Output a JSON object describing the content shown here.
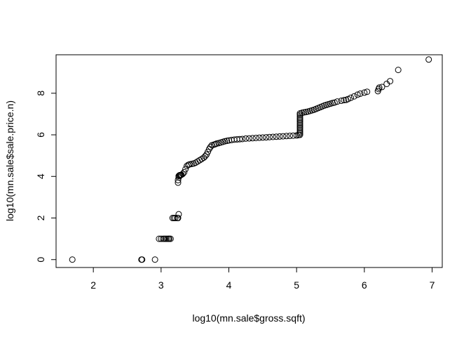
{
  "chart_data": {
    "type": "scatter",
    "title": "",
    "xlabel": "log10(mn.sale$gross.sqft)",
    "ylabel": "log10(mn.sale$sale.price.n)",
    "xlim": [
      1.45,
      7.15
    ],
    "ylim": [
      -0.38,
      9.85
    ],
    "xticks": [
      2,
      3,
      4,
      5,
      6,
      7
    ],
    "yticks": [
      0,
      2,
      4,
      6,
      8
    ],
    "grid": false,
    "legend": "none",
    "marker": "open-circle",
    "points": [
      [
        1.69,
        0.0
      ],
      [
        2.71,
        0.0
      ],
      [
        2.72,
        0.0
      ],
      [
        2.91,
        0.0
      ],
      [
        2.97,
        1.0
      ],
      [
        3.0,
        1.0
      ],
      [
        3.03,
        1.0
      ],
      [
        3.05,
        1.0
      ],
      [
        3.07,
        1.0
      ],
      [
        3.09,
        1.0
      ],
      [
        3.11,
        1.0
      ],
      [
        3.12,
        1.0
      ],
      [
        3.14,
        1.0
      ],
      [
        3.17,
        2.0
      ],
      [
        3.19,
        2.0
      ],
      [
        3.21,
        2.0
      ],
      [
        3.24,
        2.0
      ],
      [
        3.25,
        2.0
      ],
      [
        3.26,
        2.18
      ],
      [
        3.25,
        3.7
      ],
      [
        3.25,
        3.82
      ],
      [
        3.26,
        3.95
      ],
      [
        3.26,
        4.02
      ],
      [
        3.27,
        4.05
      ],
      [
        3.28,
        4.06
      ],
      [
        3.29,
        4.07
      ],
      [
        3.3,
        4.08
      ],
      [
        3.32,
        4.12
      ],
      [
        3.34,
        4.2
      ],
      [
        3.36,
        4.35
      ],
      [
        3.38,
        4.5
      ],
      [
        3.4,
        4.55
      ],
      [
        3.42,
        4.58
      ],
      [
        3.45,
        4.6
      ],
      [
        3.48,
        4.62
      ],
      [
        3.51,
        4.66
      ],
      [
        3.54,
        4.72
      ],
      [
        3.57,
        4.78
      ],
      [
        3.6,
        4.84
      ],
      [
        3.63,
        4.9
      ],
      [
        3.65,
        4.97
      ],
      [
        3.67,
        5.05
      ],
      [
        3.69,
        5.18
      ],
      [
        3.71,
        5.32
      ],
      [
        3.73,
        5.42
      ],
      [
        3.75,
        5.5
      ],
      [
        3.78,
        5.53
      ],
      [
        3.8,
        5.55
      ],
      [
        3.82,
        5.58
      ],
      [
        3.85,
        5.6
      ],
      [
        3.88,
        5.63
      ],
      [
        3.91,
        5.66
      ],
      [
        3.94,
        5.69
      ],
      [
        3.97,
        5.71
      ],
      [
        4.0,
        5.73
      ],
      [
        4.04,
        5.75
      ],
      [
        4.08,
        5.77
      ],
      [
        4.12,
        5.78
      ],
      [
        4.16,
        5.79
      ],
      [
        4.2,
        5.8
      ],
      [
        4.25,
        5.82
      ],
      [
        4.3,
        5.83
      ],
      [
        4.35,
        5.84
      ],
      [
        4.4,
        5.85
      ],
      [
        4.45,
        5.86
      ],
      [
        4.5,
        5.87
      ],
      [
        4.55,
        5.88
      ],
      [
        4.6,
        5.89
      ],
      [
        4.65,
        5.9
      ],
      [
        4.7,
        5.91
      ],
      [
        4.75,
        5.92
      ],
      [
        4.8,
        5.93
      ],
      [
        4.85,
        5.94
      ],
      [
        4.9,
        5.95
      ],
      [
        4.95,
        5.96
      ],
      [
        5.0,
        5.97
      ],
      [
        5.03,
        5.99
      ],
      [
        5.05,
        6.0
      ],
      [
        5.05,
        6.08
      ],
      [
        5.05,
        6.16
      ],
      [
        5.05,
        6.24
      ],
      [
        5.05,
        6.32
      ],
      [
        5.05,
        6.4
      ],
      [
        5.05,
        6.48
      ],
      [
        5.05,
        6.56
      ],
      [
        5.05,
        6.64
      ],
      [
        5.05,
        6.72
      ],
      [
        5.05,
        6.8
      ],
      [
        5.05,
        6.88
      ],
      [
        5.05,
        6.96
      ],
      [
        5.05,
        7.03
      ],
      [
        5.08,
        7.06
      ],
      [
        5.11,
        7.08
      ],
      [
        5.14,
        7.1
      ],
      [
        5.17,
        7.12
      ],
      [
        5.2,
        7.15
      ],
      [
        5.23,
        7.18
      ],
      [
        5.26,
        7.21
      ],
      [
        5.29,
        7.25
      ],
      [
        5.32,
        7.29
      ],
      [
        5.35,
        7.33
      ],
      [
        5.38,
        7.37
      ],
      [
        5.41,
        7.41
      ],
      [
        5.44,
        7.44
      ],
      [
        5.47,
        7.47
      ],
      [
        5.5,
        7.5
      ],
      [
        5.53,
        7.53
      ],
      [
        5.56,
        7.55
      ],
      [
        5.6,
        7.6
      ],
      [
        5.66,
        7.64
      ],
      [
        5.7,
        7.67
      ],
      [
        5.73,
        7.68
      ],
      [
        5.76,
        7.72
      ],
      [
        5.8,
        7.78
      ],
      [
        5.85,
        7.85
      ],
      [
        5.9,
        7.93
      ],
      [
        5.94,
        7.98
      ],
      [
        6.0,
        8.03
      ],
      [
        6.04,
        8.07
      ],
      [
        6.2,
        8.1
      ],
      [
        6.21,
        8.2
      ],
      [
        6.22,
        8.27
      ],
      [
        6.26,
        8.3
      ],
      [
        6.33,
        8.45
      ],
      [
        6.38,
        8.58
      ],
      [
        6.5,
        9.12
      ],
      [
        6.95,
        9.62
      ]
    ]
  }
}
